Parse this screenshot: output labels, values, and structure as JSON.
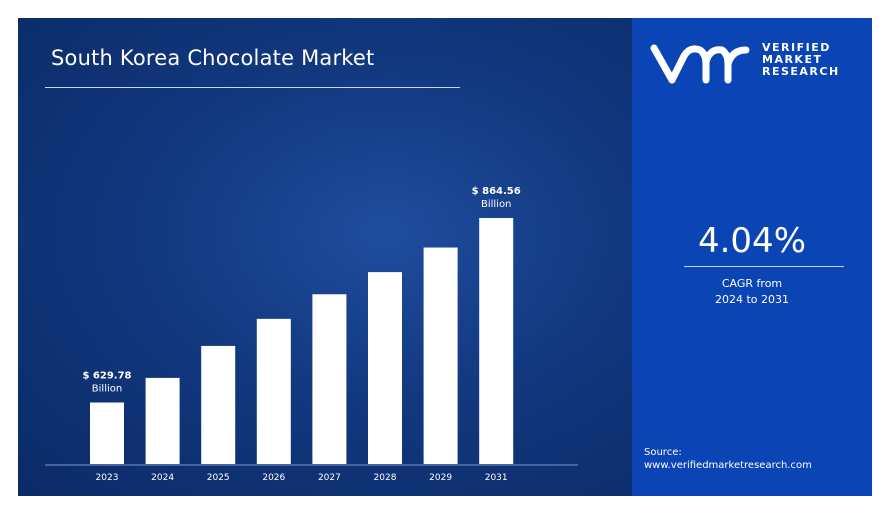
{
  "title": "South Korea Chocolate Market",
  "brand": {
    "logo_mark": "vmr",
    "name_lines": [
      "VERIFIED",
      "MARKET",
      "RESEARCH"
    ],
    "registered": "®"
  },
  "cagr": {
    "value": "4.04%",
    "label_line1": "CAGR from",
    "label_line2": "2024 to 2031"
  },
  "source": {
    "label": "Source:",
    "url": "www.verifiedmarketresearch.com"
  },
  "colors": {
    "left_bg": "#12387f",
    "right_panel": "#0b44b4",
    "bars": "#ffffff"
  },
  "chart_data": {
    "type": "bar",
    "title": "South Korea Chocolate Market",
    "categories": [
      "2023",
      "2024",
      "2025",
      "2026",
      "2027",
      "2028",
      "2029",
      "2031"
    ],
    "values": [
      629.78,
      null,
      null,
      null,
      null,
      null,
      null,
      864.56
    ],
    "relative_height": [
      0.25,
      0.35,
      0.48,
      0.59,
      0.69,
      0.78,
      0.88,
      1.0
    ],
    "unit": "Billion",
    "data_labels": [
      {
        "category": "2023",
        "line1": "$ 629.78",
        "line2": "Billion"
      },
      {
        "category": "2031",
        "line1": "$ 864.56",
        "line2": "Billion"
      }
    ],
    "grid": false,
    "legend": "none"
  }
}
